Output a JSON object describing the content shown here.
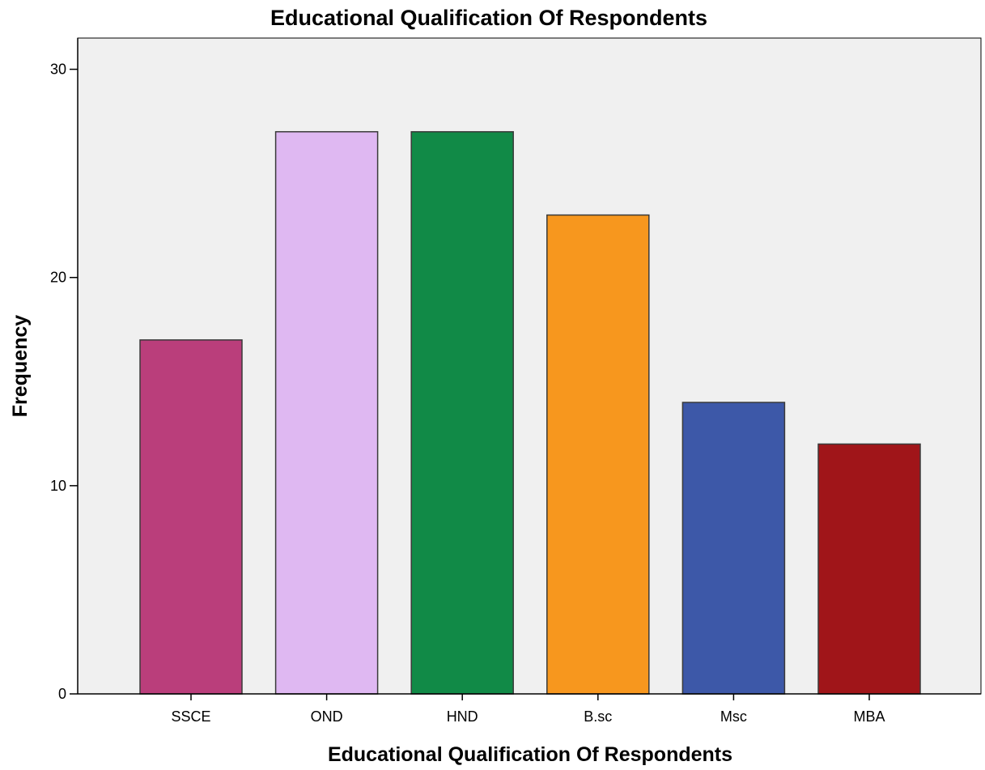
{
  "chart_data": {
    "type": "bar",
    "title": "Educational Qualification Of Respondents",
    "xlabel": "Educational Qualification Of Respondents",
    "ylabel": "Frequency",
    "categories": [
      "SSCE",
      "OND",
      "HND",
      "B.sc",
      "Msc",
      "MBA"
    ],
    "values": [
      17,
      27,
      27,
      23,
      14,
      12
    ],
    "colors": [
      "#BA3E7B",
      "#DFB8F2",
      "#118A47",
      "#F7971E",
      "#3D58A8",
      "#A01519"
    ],
    "ylim": [
      0,
      31.5
    ],
    "yticks": [
      0,
      10,
      20,
      30
    ],
    "grid": false,
    "plot_background": "#F0F0F0"
  }
}
